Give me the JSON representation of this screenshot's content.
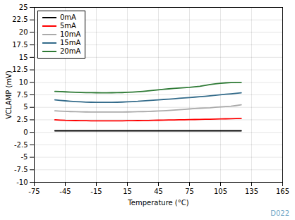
{
  "chart_data": {
    "type": "line",
    "xlabel": "Temperature (°C)",
    "ylabel": "VCLAMP (mV)",
    "annotations": [
      {
        "text": "D022",
        "color": "#6fa8c8"
      }
    ],
    "x": [
      -55,
      -50,
      -45,
      -40,
      -35,
      -30,
      -25,
      -20,
      -15,
      -10,
      -5,
      0,
      5,
      10,
      15,
      20,
      25,
      30,
      35,
      40,
      45,
      50,
      55,
      60,
      65,
      70,
      75,
      80,
      85,
      90,
      95,
      100,
      105,
      110,
      115,
      120,
      125
    ],
    "xlim": [
      -75,
      165
    ],
    "ylim": [
      -10,
      25
    ],
    "xticks": [
      -75,
      -45,
      -15,
      15,
      45,
      75,
      105,
      135,
      165
    ],
    "yticks": [
      -10,
      -7.5,
      -5,
      -2.5,
      0,
      2.5,
      5,
      7.5,
      10,
      12.5,
      15,
      17.5,
      20,
      22.5,
      25
    ],
    "grid": true,
    "legend": "upper left",
    "series": [
      {
        "name": "0mA",
        "color": "#000000",
        "values": [
          0.3,
          0.3,
          0.3,
          0.3,
          0.3,
          0.3,
          0.3,
          0.3,
          0.3,
          0.3,
          0.3,
          0.3,
          0.3,
          0.3,
          0.3,
          0.3,
          0.3,
          0.3,
          0.3,
          0.3,
          0.3,
          0.3,
          0.3,
          0.3,
          0.3,
          0.3,
          0.3,
          0.3,
          0.3,
          0.3,
          0.3,
          0.3,
          0.3,
          0.3,
          0.3,
          0.3,
          0.3
        ]
      },
      {
        "name": "5mA",
        "color": "#ff0000",
        "values": [
          2.5,
          2.45,
          2.4,
          2.38,
          2.35,
          2.33,
          2.32,
          2.31,
          2.3,
          2.3,
          2.3,
          2.3,
          2.3,
          2.3,
          2.32,
          2.33,
          2.35,
          2.37,
          2.38,
          2.4,
          2.42,
          2.44,
          2.46,
          2.48,
          2.5,
          2.52,
          2.54,
          2.56,
          2.58,
          2.6,
          2.62,
          2.65,
          2.68,
          2.7,
          2.72,
          2.75,
          2.8
        ]
      },
      {
        "name": "10mA",
        "color": "#aaaaaa",
        "values": [
          4.3,
          4.25,
          4.2,
          4.15,
          4.12,
          4.1,
          4.08,
          4.07,
          4.06,
          4.05,
          4.05,
          4.05,
          4.05,
          4.06,
          4.08,
          4.1,
          4.12,
          4.15,
          4.18,
          4.22,
          4.26,
          4.32,
          4.38,
          4.45,
          4.52,
          4.6,
          4.68,
          4.76,
          4.82,
          4.88,
          4.92,
          5.0,
          5.08,
          5.15,
          5.22,
          5.35,
          5.5
        ]
      },
      {
        "name": "15mA",
        "color": "#336b8a",
        "values": [
          6.5,
          6.4,
          6.3,
          6.22,
          6.15,
          6.1,
          6.05,
          6.02,
          6.0,
          6.0,
          6.0,
          6.0,
          6.02,
          6.05,
          6.1,
          6.15,
          6.2,
          6.28,
          6.35,
          6.42,
          6.5,
          6.58,
          6.65,
          6.72,
          6.8,
          6.88,
          6.96,
          7.04,
          7.12,
          7.2,
          7.3,
          7.42,
          7.52,
          7.62,
          7.7,
          7.8,
          7.9
        ]
      },
      {
        "name": "20mA",
        "color": "#2e7a35",
        "values": [
          8.2,
          8.15,
          8.1,
          8.05,
          8.0,
          7.97,
          7.95,
          7.93,
          7.92,
          7.91,
          7.91,
          7.92,
          7.94,
          7.96,
          8.0,
          8.05,
          8.12,
          8.2,
          8.3,
          8.4,
          8.5,
          8.6,
          8.7,
          8.78,
          8.86,
          8.93,
          9.0,
          9.1,
          9.2,
          9.38,
          9.55,
          9.7,
          9.82,
          9.9,
          9.95,
          10.0,
          10.0
        ]
      }
    ]
  }
}
